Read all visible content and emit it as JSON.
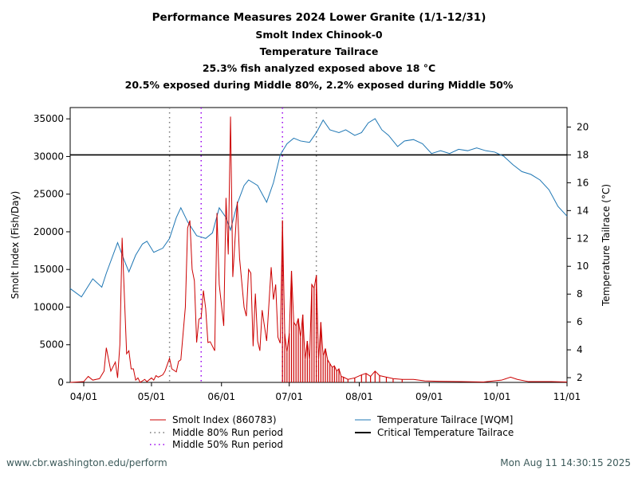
{
  "chart_data": {
    "type": "line",
    "title_lines": [
      "Performance Measures 2024 Lower Granite (1/1-12/31)",
      "Smolt Index Chinook-0",
      "Temperature Tailrace",
      "25.3% fish analyzed exposed above 18 °C",
      "20.5% exposed during Middle 80%, 2.2% exposed during Middle 50%"
    ],
    "xlim": [
      "2024-03-26",
      "2024-11-01"
    ],
    "x_ticks": [
      {
        "date": "2024-04-01",
        "label": "04/01"
      },
      {
        "date": "2024-05-01",
        "label": "05/01"
      },
      {
        "date": "2024-06-01",
        "label": "06/01"
      },
      {
        "date": "2024-07-01",
        "label": "07/01"
      },
      {
        "date": "2024-08-01",
        "label": "08/01"
      },
      {
        "date": "2024-09-01",
        "label": "09/01"
      },
      {
        "date": "2024-10-01",
        "label": "10/01"
      },
      {
        "date": "2024-11-01",
        "label": "11/01"
      }
    ],
    "ylabel_left": "Smolt Index (Fish/Day)",
    "ylim_left": [
      0,
      36500
    ],
    "y_ticks_left": [
      0,
      5000,
      10000,
      15000,
      20000,
      25000,
      30000,
      35000
    ],
    "ylabel_right": "Temperature Tailrace (°C)",
    "ylim_right": [
      1.66,
      21.4
    ],
    "y_ticks_right": [
      2,
      4,
      6,
      8,
      10,
      12,
      14,
      16,
      18,
      20
    ],
    "grid": false,
    "legend_placement": "bottom",
    "legend": [
      {
        "label": "Smolt Index (860783)",
        "color": "#cc0000",
        "style": "line"
      },
      {
        "label": "Temperature Tailrace [WQM]",
        "color": "#1f77b4",
        "style": "line"
      },
      {
        "label": "Middle 80% Run period",
        "color": "#777777",
        "style": "dotted"
      },
      {
        "label": "Critical Temperature Tailrace",
        "color": "#000000",
        "style": "thick"
      },
      {
        "label": "Middle 50% Run period",
        "color": "#9900ee",
        "style": "dotted"
      }
    ],
    "critical_temperature": 18,
    "middle_80_run": [
      "2024-05-09",
      "2024-07-13"
    ],
    "middle_50_run": [
      "2024-05-23",
      "2024-06-28"
    ],
    "smolt_index": {
      "color": "#cc0000",
      "axis": "left",
      "points": [
        [
          "2024-03-26",
          0
        ],
        [
          "2024-04-01",
          100
        ],
        [
          "2024-04-03",
          800
        ],
        [
          "2024-04-05",
          300
        ],
        [
          "2024-04-08",
          500
        ],
        [
          "2024-04-10",
          1500
        ],
        [
          "2024-04-11",
          4600
        ],
        [
          "2024-04-13",
          1500
        ],
        [
          "2024-04-15",
          2700
        ],
        [
          "2024-04-16",
          600
        ],
        [
          "2024-04-17",
          5000
        ],
        [
          "2024-04-18",
          19200
        ],
        [
          "2024-04-20",
          3800
        ],
        [
          "2024-04-21",
          4200
        ],
        [
          "2024-04-22",
          1800
        ],
        [
          "2024-04-23",
          1800
        ],
        [
          "2024-04-24",
          300
        ],
        [
          "2024-04-25",
          600
        ],
        [
          "2024-04-26",
          0
        ],
        [
          "2024-04-28",
          400
        ],
        [
          "2024-04-29",
          100
        ],
        [
          "2024-05-01",
          600
        ],
        [
          "2024-05-02",
          300
        ],
        [
          "2024-05-03",
          900
        ],
        [
          "2024-05-04",
          700
        ],
        [
          "2024-05-06",
          1000
        ],
        [
          "2024-05-07",
          1500
        ],
        [
          "2024-05-09",
          3200
        ],
        [
          "2024-05-10",
          1800
        ],
        [
          "2024-05-12",
          1400
        ],
        [
          "2024-05-13",
          2800
        ],
        [
          "2024-05-14",
          3000
        ],
        [
          "2024-05-16",
          10000
        ],
        [
          "2024-05-17",
          20500
        ],
        [
          "2024-05-18",
          21500
        ],
        [
          "2024-05-19",
          15000
        ],
        [
          "2024-05-20",
          13500
        ],
        [
          "2024-05-21",
          5300
        ],
        [
          "2024-05-22",
          8400
        ],
        [
          "2024-05-23",
          8600
        ],
        [
          "2024-05-24",
          12200
        ],
        [
          "2024-05-25",
          9800
        ],
        [
          "2024-05-26",
          5300
        ],
        [
          "2024-05-27",
          5400
        ],
        [
          "2024-05-29",
          4200
        ],
        [
          "2024-05-30",
          22500
        ],
        [
          "2024-05-31",
          13000
        ],
        [
          "2024-06-02",
          7500
        ],
        [
          "2024-06-03",
          24500
        ],
        [
          "2024-06-04",
          17000
        ],
        [
          "2024-06-05",
          35300
        ],
        [
          "2024-06-06",
          14000
        ],
        [
          "2024-06-08",
          24000
        ],
        [
          "2024-06-09",
          16500
        ],
        [
          "2024-06-11",
          10000
        ],
        [
          "2024-06-12",
          8800
        ],
        [
          "2024-06-13",
          15000
        ],
        [
          "2024-06-14",
          14500
        ],
        [
          "2024-06-15",
          4800
        ],
        [
          "2024-06-16",
          11800
        ],
        [
          "2024-06-17",
          5500
        ],
        [
          "2024-06-18",
          4200
        ],
        [
          "2024-06-19",
          9600
        ],
        [
          "2024-06-20",
          7500
        ],
        [
          "2024-06-21",
          5500
        ],
        [
          "2024-06-23",
          15300
        ],
        [
          "2024-06-24",
          11000
        ],
        [
          "2024-06-25",
          13000
        ],
        [
          "2024-06-26",
          6000
        ],
        [
          "2024-06-27",
          5200
        ],
        [
          "2024-06-28",
          21500
        ],
        [
          "2024-06-29",
          6500
        ],
        [
          "2024-06-30",
          4000
        ],
        [
          "2024-07-01",
          6500
        ],
        [
          "2024-07-02",
          14800
        ],
        [
          "2024-07-03",
          8000
        ],
        [
          "2024-07-04",
          7500
        ],
        [
          "2024-07-05",
          8500
        ],
        [
          "2024-07-06",
          6000
        ],
        [
          "2024-07-07",
          9000
        ],
        [
          "2024-07-08",
          3000
        ],
        [
          "2024-07-09",
          5500
        ],
        [
          "2024-07-10",
          3000
        ],
        [
          "2024-07-11",
          13000
        ],
        [
          "2024-07-12",
          12500
        ],
        [
          "2024-07-13",
          14200
        ],
        [
          "2024-07-14",
          3000
        ],
        [
          "2024-07-15",
          8000
        ],
        [
          "2024-07-16",
          3500
        ],
        [
          "2024-07-17",
          4500
        ],
        [
          "2024-07-18",
          3000
        ],
        [
          "2024-07-19",
          2500
        ],
        [
          "2024-07-20",
          2000
        ],
        [
          "2024-07-21",
          2200
        ],
        [
          "2024-07-22",
          1500
        ],
        [
          "2024-07-23",
          1800
        ],
        [
          "2024-07-24",
          800
        ],
        [
          "2024-07-25",
          700
        ],
        [
          "2024-07-27",
          400
        ],
        [
          "2024-07-30",
          600
        ],
        [
          "2024-08-02",
          1000
        ],
        [
          "2024-08-04",
          1200
        ],
        [
          "2024-08-06",
          800
        ],
        [
          "2024-08-08",
          1500
        ],
        [
          "2024-08-10",
          900
        ],
        [
          "2024-08-13",
          700
        ],
        [
          "2024-08-16",
          500
        ],
        [
          "2024-08-20",
          400
        ],
        [
          "2024-08-25",
          400
        ],
        [
          "2024-08-30",
          200
        ],
        [
          "2024-09-05",
          150
        ],
        [
          "2024-09-15",
          100
        ],
        [
          "2024-09-25",
          50
        ],
        [
          "2024-10-03",
          300
        ],
        [
          "2024-10-07",
          700
        ],
        [
          "2024-10-10",
          400
        ],
        [
          "2024-10-15",
          100
        ],
        [
          "2024-10-25",
          100
        ],
        [
          "2024-11-01",
          50
        ]
      ]
    },
    "temperature_tailrace": {
      "color": "#1f77b4",
      "axis": "right",
      "points": [
        [
          "2024-03-26",
          8.4
        ],
        [
          "2024-03-31",
          7.8
        ],
        [
          "2024-04-05",
          9.1
        ],
        [
          "2024-04-09",
          8.5
        ],
        [
          "2024-04-11",
          9.5
        ],
        [
          "2024-04-16",
          11.7
        ],
        [
          "2024-04-19",
          10.4
        ],
        [
          "2024-04-21",
          9.6
        ],
        [
          "2024-04-24",
          10.8
        ],
        [
          "2024-04-27",
          11.6
        ],
        [
          "2024-04-29",
          11.8
        ],
        [
          "2024-05-02",
          11.0
        ],
        [
          "2024-05-06",
          11.3
        ],
        [
          "2024-05-09",
          12.0
        ],
        [
          "2024-05-12",
          13.5
        ],
        [
          "2024-05-14",
          14.2
        ],
        [
          "2024-05-17",
          13.2
        ],
        [
          "2024-05-21",
          12.2
        ],
        [
          "2024-05-25",
          12.0
        ],
        [
          "2024-05-28",
          12.4
        ],
        [
          "2024-05-31",
          14.2
        ],
        [
          "2024-06-03",
          13.5
        ],
        [
          "2024-06-05",
          12.6
        ],
        [
          "2024-06-08",
          14.5
        ],
        [
          "2024-06-11",
          15.8
        ],
        [
          "2024-06-13",
          16.2
        ],
        [
          "2024-06-17",
          15.8
        ],
        [
          "2024-06-21",
          14.6
        ],
        [
          "2024-06-24",
          16.0
        ],
        [
          "2024-06-27",
          18.0
        ],
        [
          "2024-06-30",
          18.8
        ],
        [
          "2024-07-03",
          19.2
        ],
        [
          "2024-07-06",
          19.0
        ],
        [
          "2024-07-10",
          18.9
        ],
        [
          "2024-07-13",
          19.6
        ],
        [
          "2024-07-16",
          20.5
        ],
        [
          "2024-07-19",
          19.8
        ],
        [
          "2024-07-23",
          19.6
        ],
        [
          "2024-07-26",
          19.8
        ],
        [
          "2024-07-30",
          19.4
        ],
        [
          "2024-08-02",
          19.6
        ],
        [
          "2024-08-05",
          20.3
        ],
        [
          "2024-08-08",
          20.6
        ],
        [
          "2024-08-11",
          19.8
        ],
        [
          "2024-08-14",
          19.4
        ],
        [
          "2024-08-18",
          18.6
        ],
        [
          "2024-08-21",
          19.0
        ],
        [
          "2024-08-25",
          19.1
        ],
        [
          "2024-08-29",
          18.8
        ],
        [
          "2024-09-02",
          18.1
        ],
        [
          "2024-09-06",
          18.3
        ],
        [
          "2024-09-10",
          18.1
        ],
        [
          "2024-09-14",
          18.4
        ],
        [
          "2024-09-18",
          18.3
        ],
        [
          "2024-09-22",
          18.5
        ],
        [
          "2024-09-26",
          18.3
        ],
        [
          "2024-09-30",
          18.2
        ],
        [
          "2024-10-04",
          17.9
        ],
        [
          "2024-10-08",
          17.3
        ],
        [
          "2024-10-12",
          16.8
        ],
        [
          "2024-10-16",
          16.6
        ],
        [
          "2024-10-20",
          16.2
        ],
        [
          "2024-10-24",
          15.5
        ],
        [
          "2024-10-28",
          14.3
        ],
        [
          "2024-11-01",
          13.6
        ]
      ]
    }
  },
  "footer": {
    "source": "www.cbr.washington.edu/perform",
    "timestamp": "Mon Aug 11 14:30:15 2025"
  }
}
